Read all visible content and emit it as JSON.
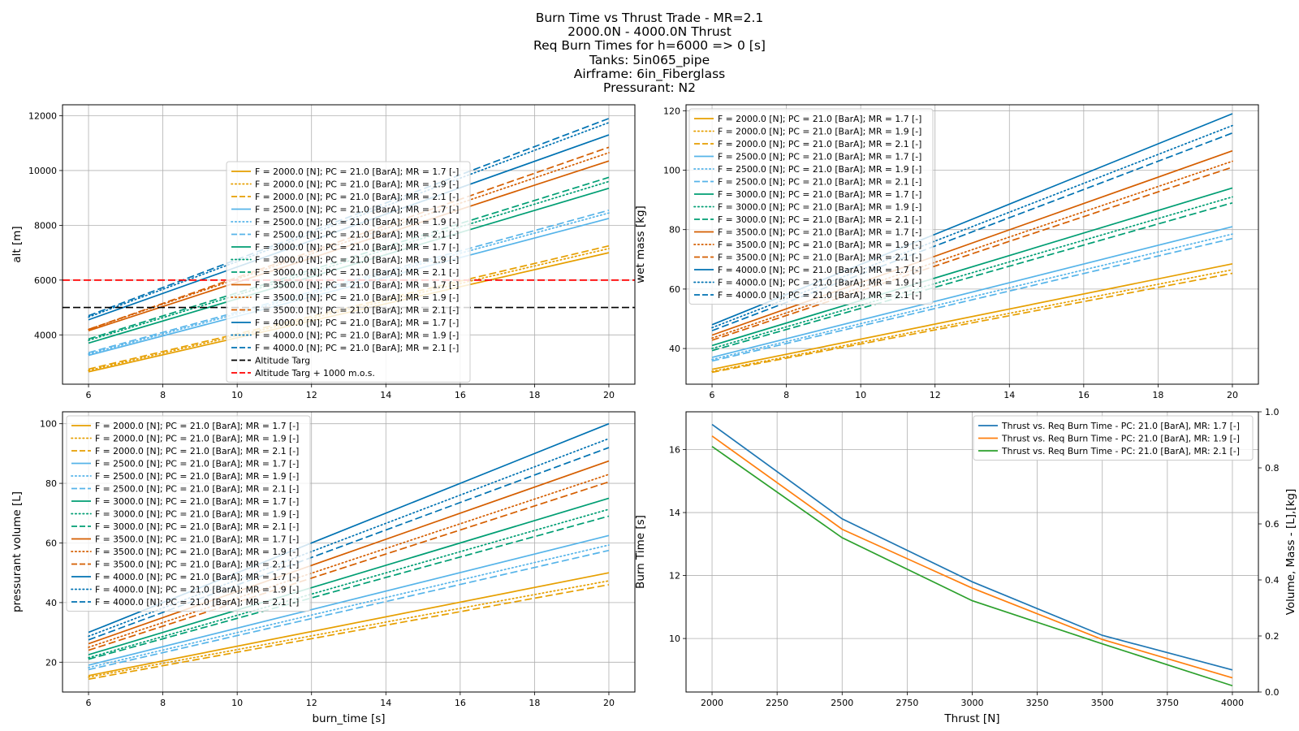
{
  "figure": {
    "title_lines": [
      "Burn Time vs Thrust Trade - MR=2.1",
      "2000.0N - 4000.0N Thrust",
      "Req Burn Times for h=6000 => 0 [s]",
      "Tanks: 5in065_pipe",
      "Airframe: 6in_Fiberglass",
      "Pressurant: N2"
    ]
  },
  "colors": {
    "F2000": "#e69f00",
    "F2500": "#56b4e9",
    "F3000": "#009e73",
    "F3500": "#d55e00",
    "F4000": "#0072b2",
    "altitude_targ": "#000000",
    "altitude_targ_mos": "#ff0000",
    "mr17": "#1f77b4",
    "mr19": "#ff7f0e",
    "mr21": "#2ca02c"
  },
  "chart_data": [
    {
      "id": "alt",
      "type": "line",
      "xlabel": "",
      "ylabel": "alt [m]",
      "xlim": [
        5.3,
        20.7
      ],
      "ylim": [
        2200,
        12400
      ],
      "xticks": [
        6,
        8,
        10,
        12,
        14,
        16,
        18,
        20
      ],
      "yticks": [
        4000,
        6000,
        8000,
        10000,
        12000
      ],
      "grid": true,
      "legend_position": "center",
      "x": [
        6,
        20
      ],
      "series": [
        {
          "name": "F = 2000.0 [N]; PC = 21.0 [BarA]; MR = 1.7 [-]",
          "color_key": "F2000",
          "style": "solid",
          "values": [
            2650,
            7000
          ]
        },
        {
          "name": "F = 2000.0 [N]; PC = 21.0 [BarA]; MR = 1.9 [-]",
          "color_key": "F2000",
          "style": "dotted",
          "values": [
            2700,
            7150
          ]
        },
        {
          "name": "F = 2000.0 [N]; PC = 21.0 [BarA]; MR = 2.1 [-]",
          "color_key": "F2000",
          "style": "dashed",
          "values": [
            2750,
            7250
          ]
        },
        {
          "name": "F = 2500.0 [N]; PC = 21.0 [BarA]; MR = 1.7 [-]",
          "color_key": "F2500",
          "style": "solid",
          "values": [
            3250,
            8250
          ]
        },
        {
          "name": "F = 2500.0 [N]; PC = 21.0 [BarA]; MR = 1.9 [-]",
          "color_key": "F2500",
          "style": "dotted",
          "values": [
            3300,
            8450
          ]
        },
        {
          "name": "F = 2500.0 [N]; PC = 21.0 [BarA]; MR = 2.1 [-]",
          "color_key": "F2500",
          "style": "dashed",
          "values": [
            3350,
            8550
          ]
        },
        {
          "name": "F = 3000.0 [N]; PC = 21.0 [BarA]; MR = 1.7 [-]",
          "color_key": "F3000",
          "style": "solid",
          "values": [
            3700,
            9350
          ]
        },
        {
          "name": "F = 3000.0 [N]; PC = 21.0 [BarA]; MR = 1.9 [-]",
          "color_key": "F3000",
          "style": "dotted",
          "values": [
            3800,
            9600
          ]
        },
        {
          "name": "F = 3000.0 [N]; PC = 21.0 [BarA]; MR = 2.1 [-]",
          "color_key": "F3000",
          "style": "dashed",
          "values": [
            3850,
            9750
          ]
        },
        {
          "name": "F = 3500.0 [N]; PC = 21.0 [BarA]; MR = 1.7 [-]",
          "color_key": "F3500",
          "style": "solid",
          "values": [
            4150,
            10350
          ]
        },
        {
          "name": "F = 3500.0 [N]; PC = 21.0 [BarA]; MR = 1.9 [-]",
          "color_key": "F3500",
          "style": "dotted",
          "values": [
            4200,
            10650
          ]
        },
        {
          "name": "F = 3500.0 [N]; PC = 21.0 [BarA]; MR = 2.1 [-]",
          "color_key": "F3500",
          "style": "dashed",
          "values": [
            4200,
            10850
          ]
        },
        {
          "name": "F = 4000.0 [N]; PC = 21.0 [BarA]; MR = 1.7 [-]",
          "color_key": "F4000",
          "style": "solid",
          "values": [
            4550,
            11300
          ]
        },
        {
          "name": "F = 4000.0 [N]; PC = 21.0 [BarA]; MR = 1.9 [-]",
          "color_key": "F4000",
          "style": "dotted",
          "values": [
            4650,
            11750
          ]
        },
        {
          "name": "F = 4000.0 [N]; PC = 21.0 [BarA]; MR = 2.1 [-]",
          "color_key": "F4000",
          "style": "dashed",
          "values": [
            4700,
            11900
          ]
        },
        {
          "name": "Altitude Targ",
          "color_key": "altitude_targ",
          "style": "dashed",
          "full_width": true,
          "values": [
            5000,
            5000
          ]
        },
        {
          "name": "Altitude Targ + 1000 m.o.s.",
          "color_key": "altitude_targ_mos",
          "style": "dashed",
          "full_width": true,
          "values": [
            6000,
            6000
          ]
        }
      ]
    },
    {
      "id": "wet",
      "type": "line",
      "xlabel": "",
      "ylabel": "wet mass [kg]",
      "xlim": [
        5.3,
        20.7
      ],
      "ylim": [
        28,
        122
      ],
      "xticks": [
        6,
        8,
        10,
        12,
        14,
        16,
        18,
        20
      ],
      "yticks": [
        40,
        60,
        80,
        100,
        120
      ],
      "grid": true,
      "legend_position": "upper left",
      "x": [
        6,
        20
      ],
      "series": [
        {
          "name": "F = 2000.0 [N]; PC = 21.0 [BarA]; MR = 1.7 [-]",
          "color_key": "F2000",
          "style": "solid",
          "values": [
            33,
            68.5
          ]
        },
        {
          "name": "F = 2000.0 [N]; PC = 21.0 [BarA]; MR = 1.9 [-]",
          "color_key": "F2000",
          "style": "dotted",
          "values": [
            32.3,
            66.5
          ]
        },
        {
          "name": "F = 2000.0 [N]; PC = 21.0 [BarA]; MR = 2.1 [-]",
          "color_key": "F2000",
          "style": "dashed",
          "values": [
            32,
            65.3
          ]
        },
        {
          "name": "F = 2500.0 [N]; PC = 21.0 [BarA]; MR = 1.7 [-]",
          "color_key": "F2500",
          "style": "solid",
          "values": [
            37,
            81
          ]
        },
        {
          "name": "F = 2500.0 [N]; PC = 21.0 [BarA]; MR = 1.9 [-]",
          "color_key": "F2500",
          "style": "dotted",
          "values": [
            36.3,
            78.5
          ]
        },
        {
          "name": "F = 2500.0 [N]; PC = 21.0 [BarA]; MR = 2.1 [-]",
          "color_key": "F2500",
          "style": "dashed",
          "values": [
            35.8,
            77
          ]
        },
        {
          "name": "F = 3000.0 [N]; PC = 21.0 [BarA]; MR = 1.7 [-]",
          "color_key": "F3000",
          "style": "solid",
          "values": [
            41,
            94
          ]
        },
        {
          "name": "F = 3000.0 [N]; PC = 21.0 [BarA]; MR = 1.9 [-]",
          "color_key": "F3000",
          "style": "dotted",
          "values": [
            40,
            91
          ]
        },
        {
          "name": "F = 3000.0 [N]; PC = 21.0 [BarA]; MR = 2.1 [-]",
          "color_key": "F3000",
          "style": "dashed",
          "values": [
            39.3,
            89
          ]
        },
        {
          "name": "F = 3500.0 [N]; PC = 21.0 [BarA]; MR = 1.7 [-]",
          "color_key": "F3500",
          "style": "solid",
          "values": [
            44.5,
            106.5
          ]
        },
        {
          "name": "F = 3500.0 [N]; PC = 21.0 [BarA]; MR = 1.9 [-]",
          "color_key": "F3500",
          "style": "dotted",
          "values": [
            43.5,
            103
          ]
        },
        {
          "name": "F = 3500.0 [N]; PC = 21.0 [BarA]; MR = 2.1 [-]",
          "color_key": "F3500",
          "style": "dashed",
          "values": [
            42.8,
            101
          ]
        },
        {
          "name": "F = 4000.0 [N]; PC = 21.0 [BarA]; MR = 1.7 [-]",
          "color_key": "F4000",
          "style": "solid",
          "values": [
            48,
            119
          ]
        },
        {
          "name": "F = 4000.0 [N]; PC = 21.0 [BarA]; MR = 1.9 [-]",
          "color_key": "F4000",
          "style": "dotted",
          "values": [
            47,
            115
          ]
        },
        {
          "name": "F = 4000.0 [N]; PC = 21.0 [BarA]; MR = 2.1 [-]",
          "color_key": "F4000",
          "style": "dashed",
          "values": [
            46,
            112.5
          ]
        }
      ]
    },
    {
      "id": "press",
      "type": "line",
      "xlabel": "burn_time [s]",
      "ylabel": "pressurant volume [L]",
      "xlim": [
        5.3,
        20.7
      ],
      "ylim": [
        10,
        104
      ],
      "xticks": [
        6,
        8,
        10,
        12,
        14,
        16,
        18,
        20
      ],
      "yticks": [
        20,
        40,
        60,
        80,
        100
      ],
      "grid": true,
      "legend_position": "upper left",
      "x": [
        6,
        20
      ],
      "series": [
        {
          "name": "F = 2000.0 [N]; PC = 21.0 [BarA]; MR = 1.7 [-]",
          "color_key": "F2000",
          "style": "solid",
          "values": [
            15.5,
            50
          ]
        },
        {
          "name": "F = 2000.0 [N]; PC = 21.0 [BarA]; MR = 1.9 [-]",
          "color_key": "F2000",
          "style": "dotted",
          "values": [
            15,
            47.3
          ]
        },
        {
          "name": "F = 2000.0 [N]; PC = 21.0 [BarA]; MR = 2.1 [-]",
          "color_key": "F2000",
          "style": "dashed",
          "values": [
            14.3,
            46
          ]
        },
        {
          "name": "F = 2500.0 [N]; PC = 21.0 [BarA]; MR = 1.7 [-]",
          "color_key": "F2500",
          "style": "solid",
          "values": [
            19,
            62.5
          ]
        },
        {
          "name": "F = 2500.0 [N]; PC = 21.0 [BarA]; MR = 1.9 [-]",
          "color_key": "F2500",
          "style": "dotted",
          "values": [
            18.2,
            59.3
          ]
        },
        {
          "name": "F = 2500.0 [N]; PC = 21.0 [BarA]; MR = 2.1 [-]",
          "color_key": "F2500",
          "style": "dashed",
          "values": [
            17.5,
            57.5
          ]
        },
        {
          "name": "F = 3000.0 [N]; PC = 21.0 [BarA]; MR = 1.7 [-]",
          "color_key": "F3000",
          "style": "solid",
          "values": [
            22.5,
            75
          ]
        },
        {
          "name": "F = 3000.0 [N]; PC = 21.0 [BarA]; MR = 1.9 [-]",
          "color_key": "F3000",
          "style": "dotted",
          "values": [
            21.5,
            71.3
          ]
        },
        {
          "name": "F = 3000.0 [N]; PC = 21.0 [BarA]; MR = 2.1 [-]",
          "color_key": "F3000",
          "style": "dashed",
          "values": [
            21,
            69
          ]
        },
        {
          "name": "F = 3500.0 [N]; PC = 21.0 [BarA]; MR = 1.7 [-]",
          "color_key": "F3500",
          "style": "solid",
          "values": [
            26.2,
            87.5
          ]
        },
        {
          "name": "F = 3500.0 [N]; PC = 21.0 [BarA]; MR = 1.9 [-]",
          "color_key": "F3500",
          "style": "dotted",
          "values": [
            25,
            83
          ]
        },
        {
          "name": "F = 3500.0 [N]; PC = 21.0 [BarA]; MR = 2.1 [-]",
          "color_key": "F3500",
          "style": "dashed",
          "values": [
            24,
            80.5
          ]
        },
        {
          "name": "F = 4000.0 [N]; PC = 21.0 [BarA]; MR = 1.7 [-]",
          "color_key": "F4000",
          "style": "solid",
          "values": [
            30,
            100
          ]
        },
        {
          "name": "F = 4000.0 [N]; PC = 21.0 [BarA]; MR = 1.9 [-]",
          "color_key": "F4000",
          "style": "dotted",
          "values": [
            28.7,
            95
          ]
        },
        {
          "name": "F = 4000.0 [N]; PC = 21.0 [BarA]; MR = 2.1 [-]",
          "color_key": "F4000",
          "style": "dashed",
          "values": [
            27.5,
            92
          ]
        }
      ]
    },
    {
      "id": "burn",
      "type": "line",
      "xlabel": "Thrust [N]",
      "ylabel": "Burn Time [s]",
      "ylabel_right": "Volume, Mass - [L],[kg]",
      "xlim": [
        1900,
        4100
      ],
      "ylim": [
        8.3,
        17.2
      ],
      "ylim_right": [
        0,
        1
      ],
      "xticks": [
        2000,
        2250,
        2500,
        2750,
        3000,
        3250,
        3500,
        3750,
        4000
      ],
      "yticks": [
        10,
        12,
        14,
        16
      ],
      "yticks_right": [
        "0.0",
        "0.2",
        "0.4",
        "0.6",
        "0.8",
        "1.0"
      ],
      "grid": true,
      "legend_position": "upper right",
      "x": [
        2000,
        2500,
        3000,
        3500,
        4000
      ],
      "series": [
        {
          "name": "Thrust vs. Req Burn Time - PC: 21.0 [BarA], MR: 1.7 [-]",
          "color_key": "mr17",
          "style": "solid",
          "values": [
            16.8,
            13.8,
            11.8,
            10.1,
            9.0
          ]
        },
        {
          "name": "Thrust vs. Req Burn Time - PC: 21.0 [BarA], MR: 1.9 [-]",
          "color_key": "mr19",
          "style": "solid",
          "values": [
            16.43,
            13.47,
            11.6,
            9.97,
            8.75
          ]
        },
        {
          "name": "Thrust vs. Req Burn Time - PC: 21.0 [BarA], MR: 2.1 [-]",
          "color_key": "mr21",
          "style": "solid",
          "values": [
            16.1,
            13.2,
            11.2,
            9.83,
            8.5
          ]
        }
      ]
    }
  ]
}
